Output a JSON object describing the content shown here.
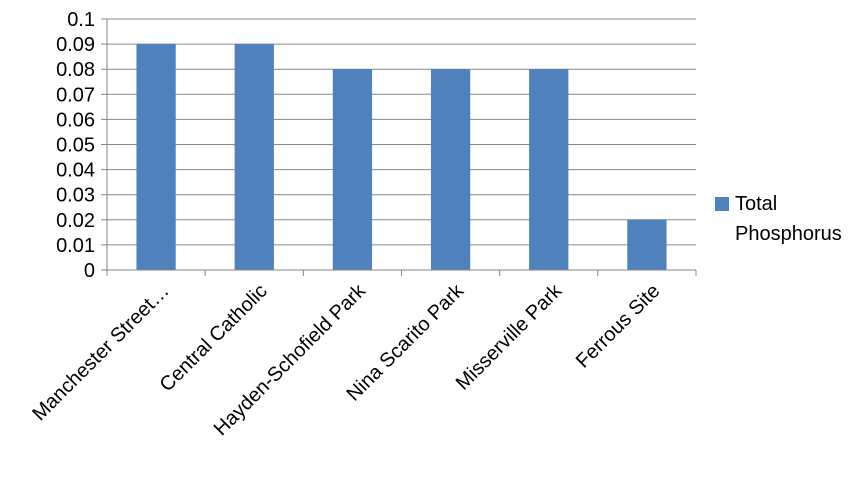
{
  "chart_data": {
    "type": "bar",
    "categories": [
      "Manchester Street…",
      "Central Catholic",
      "Hayden-Schofield Park",
      "Nina Scarito Park",
      "Misserville Park",
      "Ferrous Site"
    ],
    "series": [
      {
        "name": "Total Phosphorus",
        "values": [
          0.09,
          0.09,
          0.08,
          0.08,
          0.08,
          0.02
        ]
      }
    ],
    "yticks": [
      "0",
      "0.01",
      "0.02",
      "0.03",
      "0.04",
      "0.05",
      "0.06",
      "0.07",
      "0.08",
      "0.09",
      "0.1"
    ],
    "ylim": [
      0,
      0.1
    ],
    "grid": true,
    "legend_position": "right",
    "colors": {
      "bar": "#4F81BD",
      "grid": "#868686",
      "axis": "#868686"
    }
  },
  "legend": {
    "label": "Total Phosphorus"
  }
}
